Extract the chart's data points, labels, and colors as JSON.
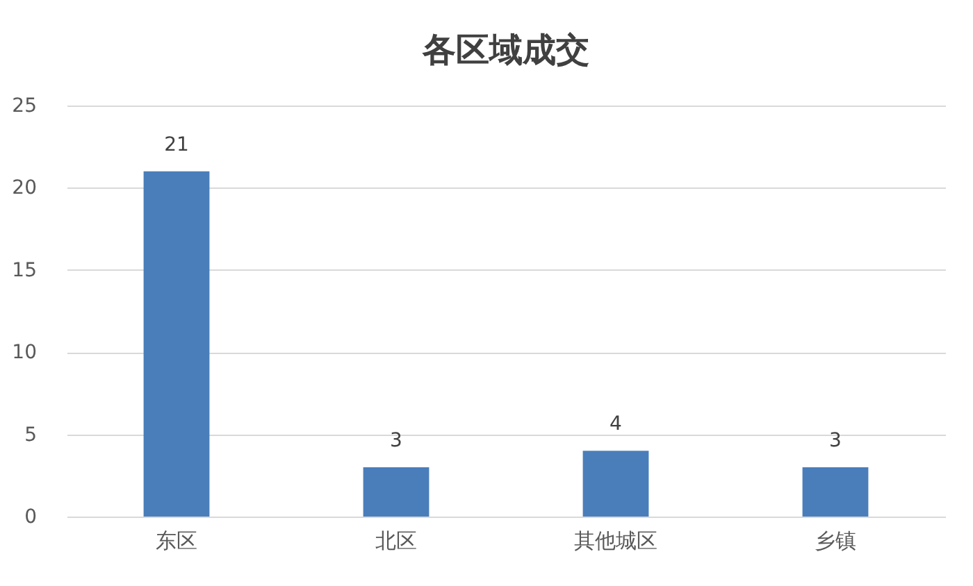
{
  "chart_data": {
    "type": "bar",
    "title": "各区域成交",
    "categories": [
      "东区",
      "北区",
      "其他城区",
      "乡镇"
    ],
    "values": [
      21,
      3,
      4,
      3
    ],
    "color": "#4a7ebb",
    "ylim": [
      0,
      25
    ],
    "yticks": [
      0,
      5,
      10,
      15,
      20,
      25
    ],
    "grid": "y",
    "data_labels": true
  }
}
